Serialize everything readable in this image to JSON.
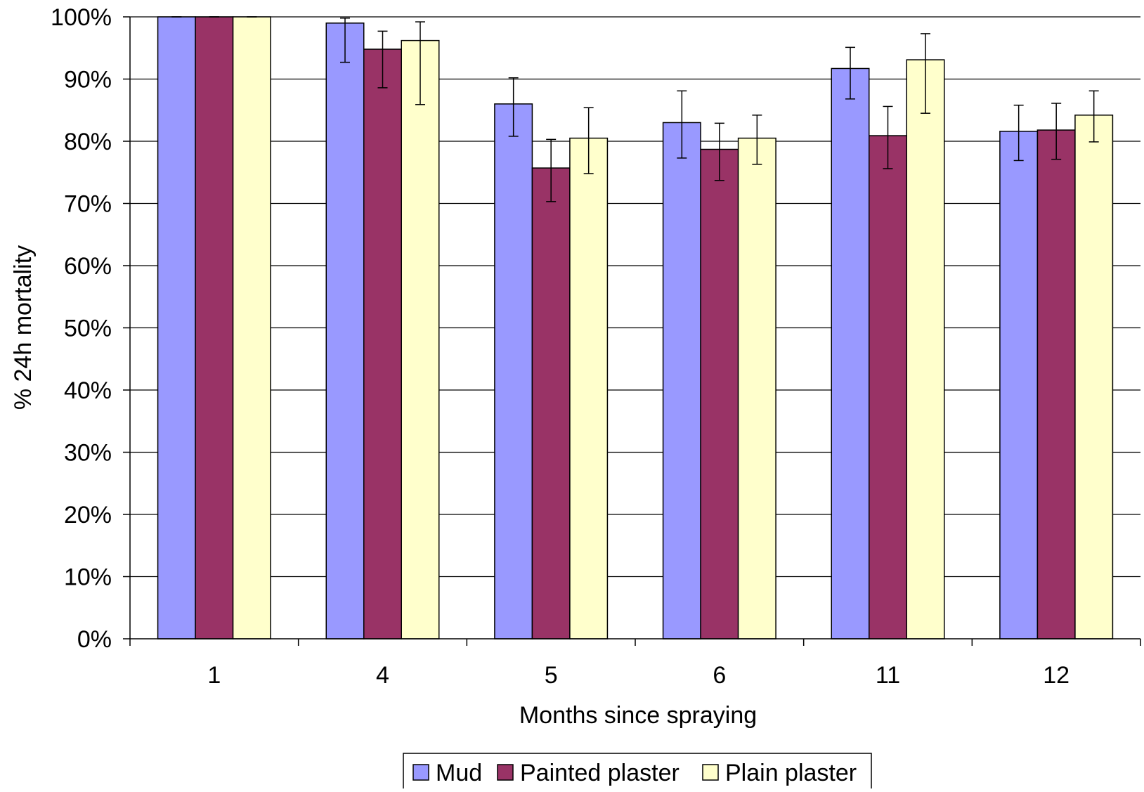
{
  "chart_data": {
    "type": "bar",
    "title": "",
    "xlabel": "Months since spraying",
    "ylabel": "% 24h mortality",
    "categories": [
      "1",
      "4",
      "5",
      "6",
      "11",
      "12"
    ],
    "ylim": [
      0,
      100
    ],
    "y_ticks": [
      "0%",
      "10%",
      "20%",
      "30%",
      "40%",
      "50%",
      "60%",
      "70%",
      "80%",
      "90%",
      "100%"
    ],
    "grid": "horizontal major gridlines",
    "legend_position": "bottom",
    "error_bars": true,
    "series": [
      {
        "name": "Mud",
        "color": "#9999ff",
        "values": [
          100,
          99,
          86,
          83,
          91.7,
          81.6
        ],
        "error_low": [
          100,
          92.7,
          80.8,
          77.3,
          86.8,
          76.9
        ],
        "error_high": [
          100,
          99.8,
          90.2,
          88.1,
          95.1,
          85.8
        ]
      },
      {
        "name": "Painted plaster",
        "color": "#993366",
        "values": [
          100,
          94.8,
          75.7,
          78.7,
          80.9,
          81.8
        ],
        "error_low": [
          100,
          88.6,
          70.3,
          73.7,
          75.6,
          77.1
        ],
        "error_high": [
          100,
          97.7,
          80.3,
          82.9,
          85.6,
          86.1
        ]
      },
      {
        "name": "Plain plaster",
        "color": "#ffffcc",
        "values": [
          100,
          96.2,
          80.5,
          80.5,
          93.1,
          84.2
        ],
        "error_low": [
          100,
          85.9,
          74.8,
          76.3,
          84.5,
          79.9
        ],
        "error_high": [
          100,
          99.2,
          85.4,
          84.2,
          97.3,
          88.1
        ]
      }
    ]
  }
}
